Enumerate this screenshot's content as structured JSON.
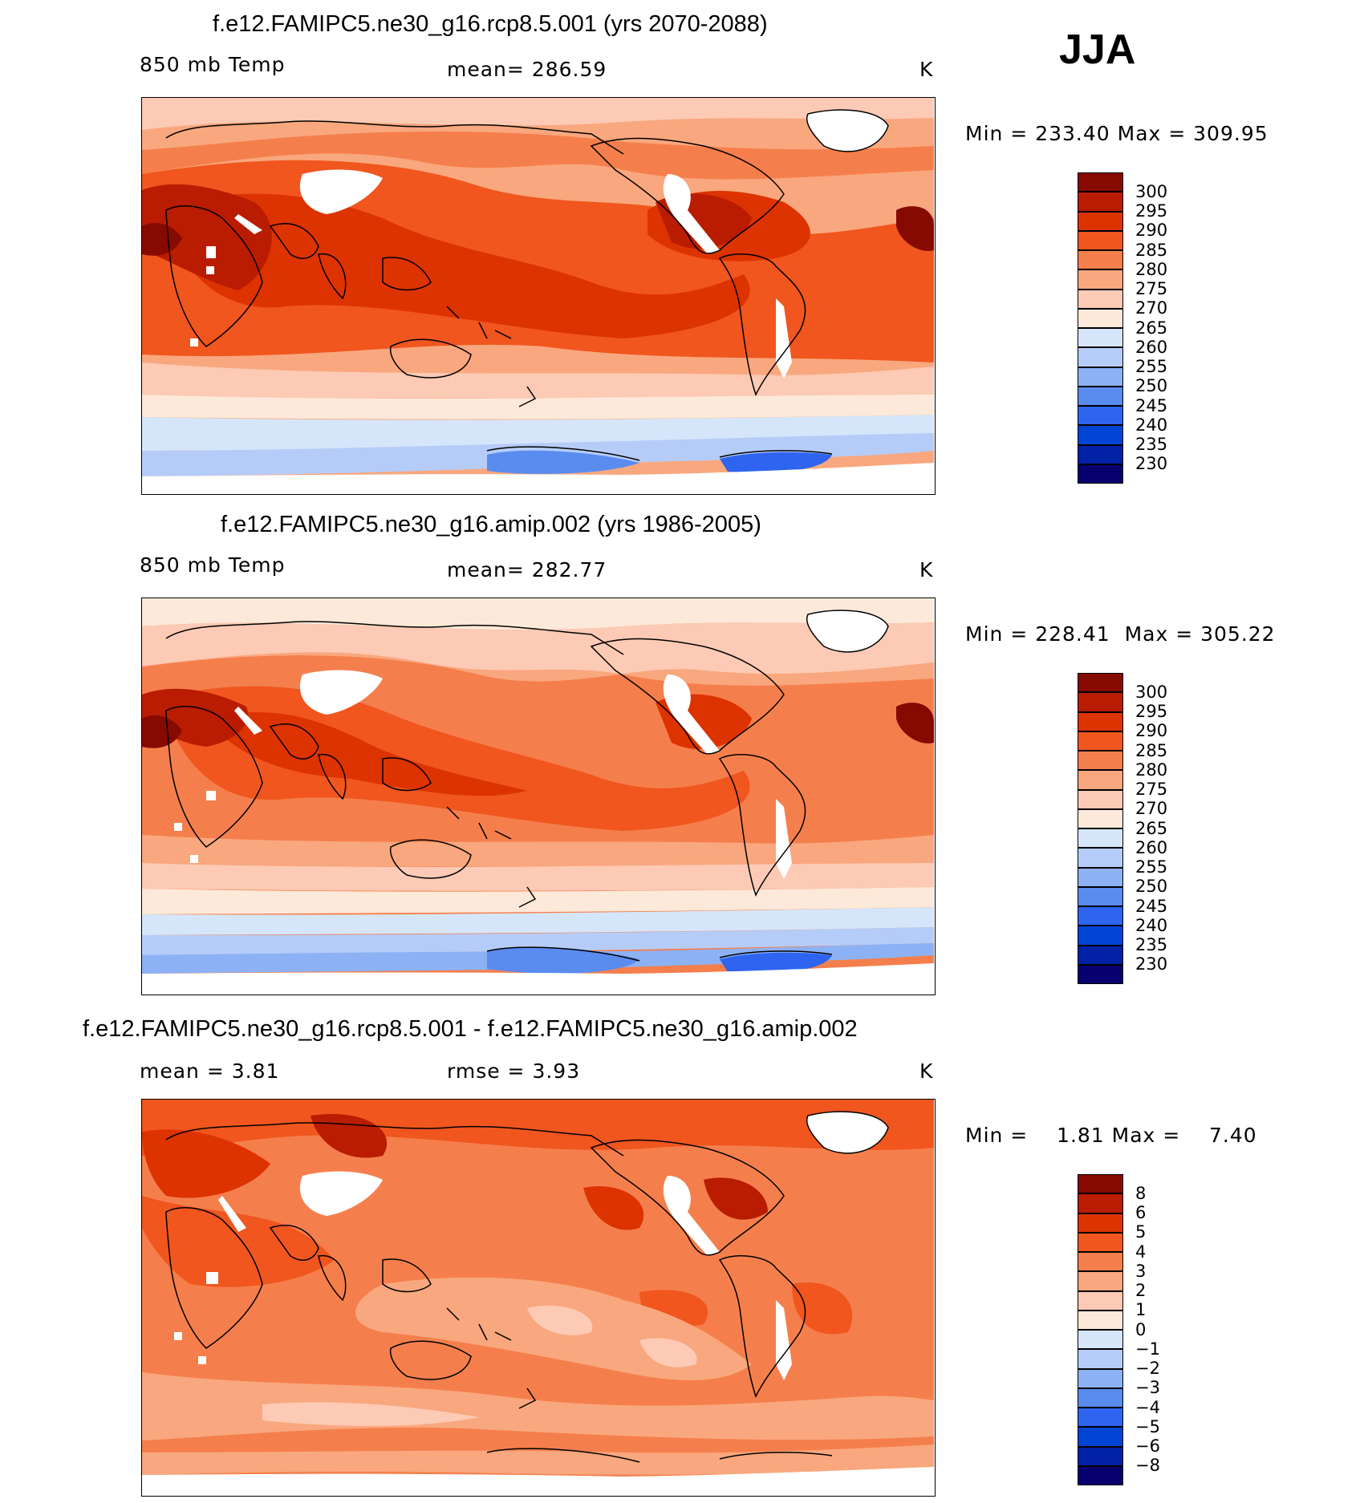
{
  "season": "JJA",
  "colors": {
    "temp_scale": [
      "#08006e",
      "#0021a6",
      "#0044d6",
      "#2e64f0",
      "#5a8cf0",
      "#8cb2f5",
      "#b6ccf8",
      "#d6e6fa",
      "#fde9d9",
      "#fccab5",
      "#f9a77e",
      "#f57f4c",
      "#f0561e",
      "#dd3300",
      "#b91c00",
      "#860a00"
    ],
    "diff_scale": [
      "#08006e",
      "#0021a6",
      "#0044d6",
      "#2e64f0",
      "#5a8cf0",
      "#8cb2f5",
      "#b6ccf8",
      "#d6e6fa",
      "#fde9d9",
      "#fccab5",
      "#f9a77e",
      "#f57f4c",
      "#f0561e",
      "#dd3300",
      "#b91c00",
      "#860a00"
    ]
  },
  "panels": [
    {
      "title": "f.e12.FAMIPC5.ne30_g16.rcp8.5.001 (yrs 2070-2088)",
      "left_label": "850 mb Temp",
      "center_label": "mean=  286.59",
      "units": "K",
      "minmax": "Min = 233.40 Max = 309.95",
      "levels": [
        "300",
        "295",
        "290",
        "285",
        "280",
        "275",
        "270",
        "265",
        "260",
        "255",
        "250",
        "245",
        "240",
        "235",
        "230"
      ]
    },
    {
      "title": "f.e12.FAMIPC5.ne30_g16.amip.002 (yrs 1986-2005)",
      "left_label": "850 mb Temp",
      "center_label": "mean=  282.77",
      "units": "K",
      "minmax": "Min = 228.41  Max = 305.22",
      "levels": [
        "300",
        "295",
        "290",
        "285",
        "280",
        "275",
        "270",
        "265",
        "260",
        "255",
        "250",
        "245",
        "240",
        "235",
        "230"
      ]
    },
    {
      "title": "f.e12.FAMIPC5.ne30_g16.rcp8.5.001 - f.e12.FAMIPC5.ne30_g16.amip.002",
      "left_label": "mean =    3.81",
      "center_label": "rmse =    3.93",
      "units": "K",
      "minmax": "Min =    1.81 Max =    7.40",
      "levels": [
        "8",
        "6",
        "5",
        "4",
        "3",
        "2",
        "1",
        "0",
        "−1",
        "−2",
        "−3",
        "−4",
        "−5",
        "−6",
        "−8"
      ]
    }
  ]
}
